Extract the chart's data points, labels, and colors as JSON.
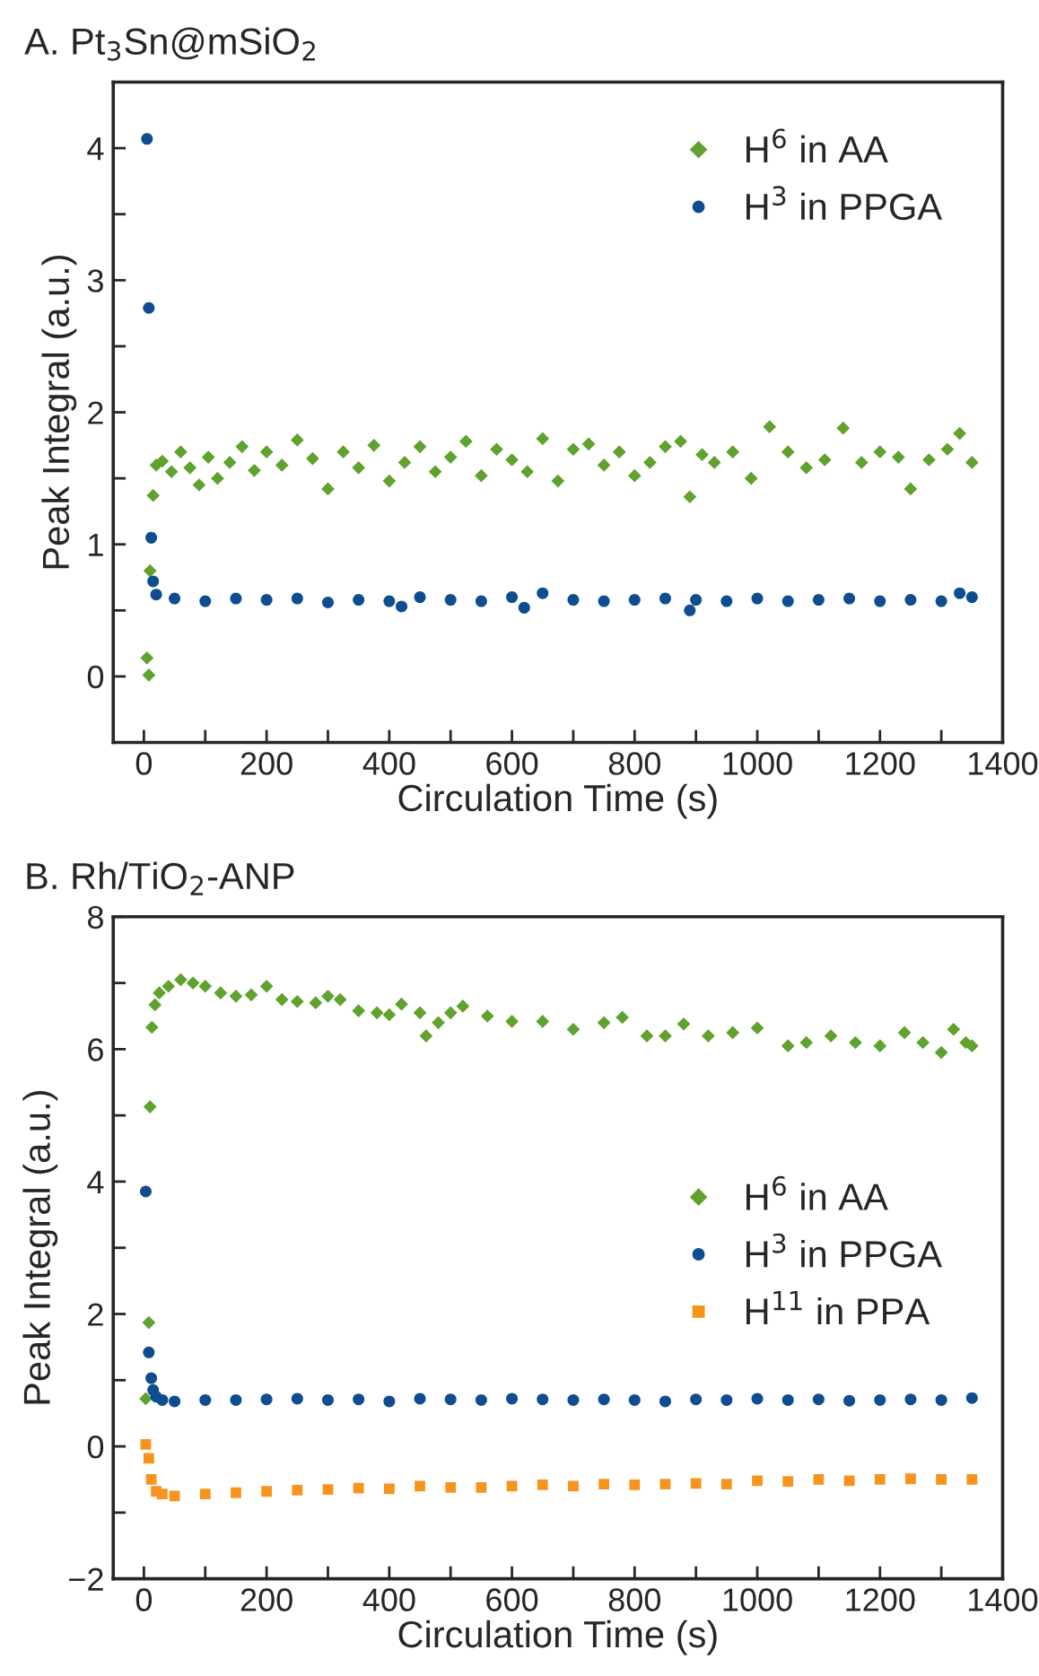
{
  "chart_data": [
    {
      "type": "scatter",
      "title": "A. Pt$_{3}$Sn@mSiO$_{2}$",
      "xlabel": "Circulation Time (s)",
      "ylabel": "Peak Integral (a.u.)",
      "xlim": [
        -50,
        1400
      ],
      "ylim": [
        -0.5,
        4.5
      ],
      "xticks": [
        0,
        {
          "value": 100,
          "label": null
        },
        200,
        {
          "value": 300,
          "label": null
        },
        400,
        {
          "value": 500,
          "label": null
        },
        600,
        {
          "value": 700,
          "label": null
        },
        800,
        {
          "value": 900,
          "label": null
        },
        1000,
        {
          "value": 1100,
          "label": null
        },
        1200,
        {
          "value": 1300,
          "label": null
        },
        1400
      ],
      "yticks": [
        0,
        {
          "value": 0.5,
          "label": null
        },
        1,
        {
          "value": 1.5,
          "label": null
        },
        2,
        {
          "value": 2.5,
          "label": null
        },
        3,
        {
          "value": 3.5,
          "label": null
        },
        4
      ],
      "legend": "top right",
      "grid": false,
      "series": [
        {
          "name": "H$^{6}$ in AA",
          "color": "#5fa22d",
          "marker": "diamond",
          "x": [
            5,
            8,
            10,
            15,
            20,
            30,
            45,
            60,
            75,
            90,
            105,
            120,
            140,
            160,
            180,
            200,
            225,
            250,
            275,
            300,
            325,
            350,
            375,
            400,
            425,
            450,
            475,
            500,
            525,
            550,
            575,
            600,
            625,
            650,
            675,
            700,
            725,
            750,
            775,
            800,
            825,
            850,
            875,
            890,
            910,
            930,
            960,
            990,
            1020,
            1050,
            1080,
            1110,
            1140,
            1170,
            1200,
            1230,
            1250,
            1280,
            1310,
            1330,
            1350
          ],
          "values": [
            0.14,
            0.01,
            0.8,
            1.37,
            1.6,
            1.63,
            1.55,
            1.7,
            1.58,
            1.45,
            1.66,
            1.5,
            1.62,
            1.74,
            1.56,
            1.7,
            1.6,
            1.79,
            1.65,
            1.42,
            1.7,
            1.58,
            1.75,
            1.48,
            1.62,
            1.74,
            1.55,
            1.66,
            1.78,
            1.52,
            1.72,
            1.64,
            1.55,
            1.8,
            1.48,
            1.72,
            1.76,
            1.6,
            1.7,
            1.52,
            1.62,
            1.74,
            1.78,
            1.36,
            1.68,
            1.62,
            1.7,
            1.5,
            1.89,
            1.7,
            1.58,
            1.64,
            1.88,
            1.62,
            1.7,
            1.66,
            1.42,
            1.64,
            1.72,
            1.84,
            1.62
          ]
        },
        {
          "name": "H$^{3}$ in PPGA",
          "color": "#0e4d8f",
          "marker": "circle",
          "x": [
            5,
            8,
            12,
            15,
            20,
            50,
            100,
            150,
            200,
            250,
            300,
            350,
            400,
            420,
            450,
            500,
            550,
            600,
            620,
            650,
            700,
            750,
            800,
            850,
            890,
            900,
            950,
            1000,
            1050,
            1100,
            1150,
            1200,
            1250,
            1300,
            1330,
            1350
          ],
          "values": [
            4.07,
            2.79,
            1.05,
            0.72,
            0.62,
            0.59,
            0.57,
            0.59,
            0.58,
            0.59,
            0.56,
            0.58,
            0.57,
            0.53,
            0.6,
            0.58,
            0.57,
            0.6,
            0.52,
            0.63,
            0.58,
            0.57,
            0.58,
            0.59,
            0.5,
            0.58,
            0.57,
            0.59,
            0.57,
            0.58,
            0.59,
            0.57,
            0.58,
            0.57,
            0.63,
            0.6
          ]
        }
      ]
    },
    {
      "type": "scatter",
      "title": "B. Rh/TiO$_{2}$-ANP",
      "xlabel": "Circulation Time (s)",
      "ylabel": "Peak Integral (a.u.)",
      "xlim": [
        -50,
        1400
      ],
      "ylim": [
        -2,
        8
      ],
      "xticks": [
        0,
        {
          "value": 100,
          "label": null
        },
        200,
        {
          "value": 300,
          "label": null
        },
        400,
        {
          "value": 500,
          "label": null
        },
        600,
        {
          "value": 700,
          "label": null
        },
        800,
        {
          "value": 900,
          "label": null
        },
        1000,
        {
          "value": 1100,
          "label": null
        },
        1200,
        {
          "value": 1300,
          "label": null
        },
        1400
      ],
      "yticks": [
        {
          "value": -2,
          "label": "−2"
        },
        {
          "value": -1,
          "label": null
        },
        0,
        {
          "value": 1,
          "label": null
        },
        2,
        {
          "value": 3,
          "label": null
        },
        4,
        {
          "value": 5,
          "label": null
        },
        6,
        {
          "value": 7,
          "label": null
        },
        8
      ],
      "legend": "right",
      "grid": false,
      "series": [
        {
          "name": "H$^{6}$ in AA",
          "color": "#5fa22d",
          "marker": "diamond",
          "x": [
            3,
            8,
            10,
            13,
            18,
            25,
            40,
            60,
            80,
            100,
            125,
            150,
            175,
            200,
            225,
            250,
            280,
            300,
            320,
            350,
            380,
            400,
            420,
            450,
            460,
            480,
            500,
            520,
            560,
            600,
            650,
            700,
            750,
            780,
            820,
            850,
            880,
            920,
            960,
            1000,
            1050,
            1080,
            1120,
            1160,
            1200,
            1240,
            1270,
            1300,
            1320,
            1340,
            1350
          ],
          "values": [
            0.72,
            1.87,
            5.13,
            6.33,
            6.67,
            6.85,
            6.95,
            7.05,
            7.0,
            6.95,
            6.85,
            6.8,
            6.82,
            6.95,
            6.75,
            6.72,
            6.7,
            6.8,
            6.75,
            6.58,
            6.55,
            6.52,
            6.68,
            6.55,
            6.2,
            6.4,
            6.55,
            6.65,
            6.5,
            6.42,
            6.42,
            6.3,
            6.4,
            6.48,
            6.2,
            6.2,
            6.38,
            6.2,
            6.25,
            6.32,
            6.05,
            6.1,
            6.2,
            6.1,
            6.05,
            6.25,
            6.1,
            5.95,
            6.3,
            6.1,
            6.05
          ]
        },
        {
          "name": "H$^{3}$ in PPGA",
          "color": "#0e4d8f",
          "marker": "circle",
          "x": [
            3,
            8,
            12,
            15,
            20,
            30,
            50,
            100,
            150,
            200,
            250,
            300,
            350,
            400,
            450,
            500,
            550,
            600,
            650,
            700,
            750,
            800,
            850,
            900,
            950,
            1000,
            1050,
            1100,
            1150,
            1200,
            1250,
            1300,
            1350
          ],
          "values": [
            3.85,
            1.42,
            1.03,
            0.85,
            0.75,
            0.7,
            0.68,
            0.7,
            0.7,
            0.71,
            0.72,
            0.7,
            0.71,
            0.68,
            0.72,
            0.71,
            0.7,
            0.72,
            0.71,
            0.7,
            0.71,
            0.7,
            0.68,
            0.71,
            0.7,
            0.72,
            0.7,
            0.71,
            0.69,
            0.7,
            0.71,
            0.7,
            0.73
          ]
        },
        {
          "name": "H$^{11}$ in PPA",
          "color": "#f7941d",
          "marker": "square",
          "x": [
            3,
            8,
            12,
            20,
            30,
            50,
            100,
            150,
            200,
            250,
            300,
            350,
            400,
            450,
            500,
            550,
            600,
            650,
            700,
            750,
            800,
            850,
            900,
            950,
            1000,
            1050,
            1100,
            1150,
            1200,
            1250,
            1300,
            1350
          ],
          "values": [
            0.03,
            -0.18,
            -0.5,
            -0.68,
            -0.72,
            -0.75,
            -0.72,
            -0.7,
            -0.68,
            -0.66,
            -0.65,
            -0.63,
            -0.64,
            -0.6,
            -0.62,
            -0.62,
            -0.6,
            -0.58,
            -0.6,
            -0.57,
            -0.58,
            -0.57,
            -0.56,
            -0.57,
            -0.52,
            -0.53,
            -0.5,
            -0.52,
            -0.5,
            -0.49,
            -0.5,
            -0.5
          ]
        }
      ]
    }
  ]
}
